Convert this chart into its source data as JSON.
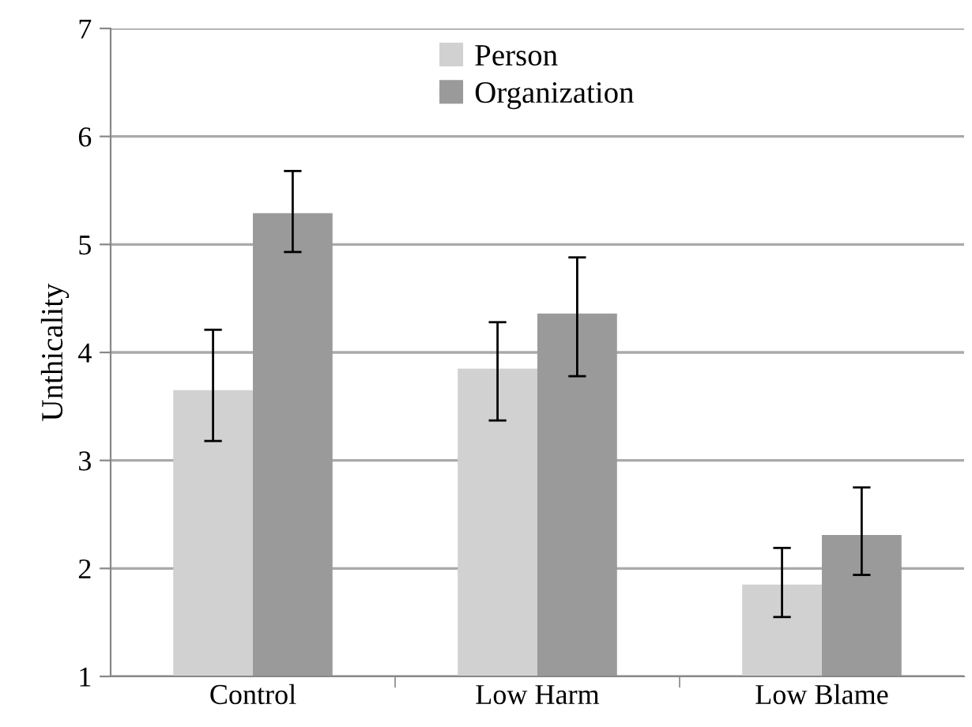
{
  "chart_data": {
    "type": "bar",
    "ylabel": "Unthicality",
    "categories": [
      "Control",
      "Low Harm",
      "Low Blame"
    ],
    "series": [
      {
        "name": "Person",
        "color": "#d0d1d0",
        "values": [
          3.65,
          3.85,
          1.85
        ],
        "errors": [
          [
            3.18,
            4.21
          ],
          [
            3.37,
            4.28
          ],
          [
            1.55,
            2.19
          ]
        ]
      },
      {
        "name": "Organization",
        "color": "#9a9a9a",
        "values": [
          5.29,
          4.36,
          2.31
        ],
        "errors": [
          [
            4.93,
            5.68
          ],
          [
            3.78,
            4.88
          ],
          [
            1.94,
            2.75
          ]
        ]
      }
    ],
    "ylim": [
      1,
      7
    ],
    "yticks": [
      1,
      2,
      3,
      4,
      5,
      6,
      7
    ],
    "grid": "y",
    "legend": "top"
  }
}
